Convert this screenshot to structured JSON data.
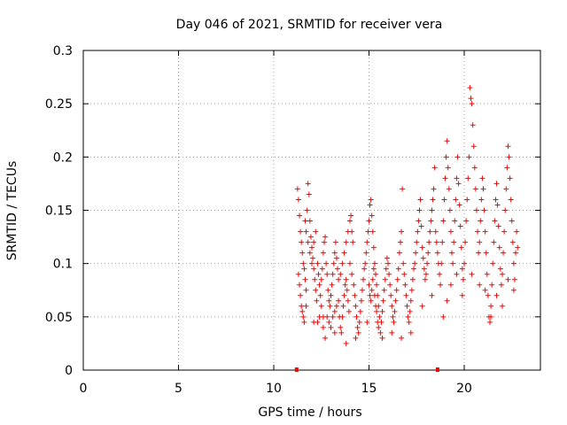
{
  "chart_data": {
    "type": "scatter",
    "title": "Day 046 of 2021, SRMTID for receiver vera",
    "xlabel": "GPS time / hours",
    "ylabel": "SRMTID / TECUs",
    "xlim": [
      0,
      24
    ],
    "ylim": [
      0,
      0.3
    ],
    "x_ticks": [
      0,
      5,
      10,
      15,
      20
    ],
    "x_tick_labels": [
      "0",
      "5",
      "10",
      "15",
      "20"
    ],
    "y_ticks": [
      0,
      0.05,
      0.1,
      0.15,
      0.2,
      0.25,
      0.3
    ],
    "y_tick_labels": [
      "0",
      "0.05",
      "0.1",
      "0.15",
      "0.2",
      "0.25",
      "0.3"
    ],
    "grid": true,
    "marker": "plus",
    "series_color": "#ff0000",
    "zero_markers_x": [
      11.2,
      18.6
    ],
    "points": [
      [
        11.25,
        0.17
      ],
      [
        11.3,
        0.16
      ],
      [
        11.35,
        0.145
      ],
      [
        11.4,
        0.13
      ],
      [
        11.45,
        0.12
      ],
      [
        11.5,
        0.11
      ],
      [
        11.55,
        0.1
      ],
      [
        11.6,
        0.095
      ],
      [
        11.65,
        0.085
      ],
      [
        11.7,
        0.075
      ],
      [
        11.3,
        0.09
      ],
      [
        11.35,
        0.08
      ],
      [
        11.4,
        0.07
      ],
      [
        11.45,
        0.06
      ],
      [
        11.5,
        0.055
      ],
      [
        11.55,
        0.05
      ],
      [
        11.6,
        0.045
      ],
      [
        11.65,
        0.14
      ],
      [
        11.7,
        0.13
      ],
      [
        11.75,
        0.15
      ],
      [
        11.8,
        0.175
      ],
      [
        11.85,
        0.165
      ],
      [
        11.9,
        0.14
      ],
      [
        11.95,
        0.125
      ],
      [
        12.0,
        0.115
      ],
      [
        12.05,
        0.105
      ],
      [
        12.1,
        0.095
      ],
      [
        12.15,
        0.085
      ],
      [
        12.2,
        0.075
      ],
      [
        12.25,
        0.065
      ],
      [
        11.8,
        0.12
      ],
      [
        11.9,
        0.11
      ],
      [
        12.0,
        0.1
      ],
      [
        12.1,
        0.12
      ],
      [
        12.2,
        0.13
      ],
      [
        12.3,
        0.1
      ],
      [
        12.35,
        0.09
      ],
      [
        12.4,
        0.08
      ],
      [
        12.45,
        0.07
      ],
      [
        12.5,
        0.06
      ],
      [
        12.3,
        0.045
      ],
      [
        12.4,
        0.05
      ],
      [
        12.5,
        0.085
      ],
      [
        12.55,
        0.095
      ],
      [
        12.6,
        0.11
      ],
      [
        12.65,
        0.12
      ],
      [
        12.7,
        0.125
      ],
      [
        12.75,
        0.1
      ],
      [
        12.8,
        0.09
      ],
      [
        12.85,
        0.075
      ],
      [
        12.9,
        0.065
      ],
      [
        12.95,
        0.06
      ],
      [
        13.0,
        0.07
      ],
      [
        13.05,
        0.08
      ],
      [
        13.1,
        0.09
      ],
      [
        13.15,
        0.1
      ],
      [
        13.2,
        0.11
      ],
      [
        13.25,
        0.12
      ],
      [
        13.3,
        0.105
      ],
      [
        13.35,
        0.095
      ],
      [
        12.6,
        0.04
      ],
      [
        12.7,
        0.03
      ],
      [
        12.8,
        0.05
      ],
      [
        12.9,
        0.045
      ],
      [
        13.0,
        0.04
      ],
      [
        13.1,
        0.05
      ],
      [
        13.2,
        0.055
      ],
      [
        13.3,
        0.06
      ],
      [
        13.4,
        0.065
      ],
      [
        13.45,
        0.05
      ],
      [
        13.5,
        0.04
      ],
      [
        13.55,
        0.035
      ],
      [
        13.6,
        0.05
      ],
      [
        13.65,
        0.06
      ],
      [
        13.7,
        0.07
      ],
      [
        13.75,
        0.08
      ],
      [
        13.8,
        0.085
      ],
      [
        13.85,
        0.075
      ],
      [
        13.9,
        0.065
      ],
      [
        13.95,
        0.055
      ],
      [
        13.4,
        0.085
      ],
      [
        13.5,
        0.09
      ],
      [
        13.6,
        0.1
      ],
      [
        13.7,
        0.11
      ],
      [
        13.8,
        0.12
      ],
      [
        13.9,
        0.13
      ],
      [
        14.0,
        0.14
      ],
      [
        14.05,
        0.145
      ],
      [
        14.1,
        0.13
      ],
      [
        14.15,
        0.12
      ],
      [
        14.0,
        0.1
      ],
      [
        14.1,
        0.09
      ],
      [
        14.2,
        0.08
      ],
      [
        14.25,
        0.07
      ],
      [
        14.3,
        0.06
      ],
      [
        14.35,
        0.05
      ],
      [
        14.4,
        0.04
      ],
      [
        14.45,
        0.035
      ],
      [
        14.5,
        0.045
      ],
      [
        14.55,
        0.055
      ],
      [
        14.6,
        0.065
      ],
      [
        14.65,
        0.075
      ],
      [
        14.7,
        0.085
      ],
      [
        14.75,
        0.095
      ],
      [
        14.8,
        0.1
      ],
      [
        14.85,
        0.11
      ],
      [
        14.9,
        0.12
      ],
      [
        14.95,
        0.13
      ],
      [
        15.0,
        0.14
      ],
      [
        15.05,
        0.155
      ],
      [
        15.1,
        0.16
      ],
      [
        15.15,
        0.145
      ],
      [
        15.2,
        0.13
      ],
      [
        15.25,
        0.115
      ],
      [
        15.3,
        0.1
      ],
      [
        15.35,
        0.09
      ],
      [
        15.4,
        0.08
      ],
      [
        15.45,
        0.07
      ],
      [
        15.5,
        0.06
      ],
      [
        15.55,
        0.05
      ],
      [
        15.0,
        0.08
      ],
      [
        15.05,
        0.07
      ],
      [
        15.1,
        0.065
      ],
      [
        15.15,
        0.075
      ],
      [
        15.2,
        0.085
      ],
      [
        15.25,
        0.095
      ],
      [
        15.3,
        0.07
      ],
      [
        15.35,
        0.06
      ],
      [
        15.4,
        0.055
      ],
      [
        15.45,
        0.045
      ],
      [
        15.5,
        0.04
      ],
      [
        15.6,
        0.035
      ],
      [
        15.65,
        0.045
      ],
      [
        15.7,
        0.055
      ],
      [
        15.75,
        0.065
      ],
      [
        15.8,
        0.075
      ],
      [
        15.85,
        0.085
      ],
      [
        15.9,
        0.095
      ],
      [
        15.95,
        0.105
      ],
      [
        16.0,
        0.1
      ],
      [
        16.05,
        0.09
      ],
      [
        16.1,
        0.08
      ],
      [
        16.15,
        0.07
      ],
      [
        16.2,
        0.06
      ],
      [
        16.25,
        0.05
      ],
      [
        16.3,
        0.045
      ],
      [
        16.35,
        0.055
      ],
      [
        16.4,
        0.065
      ],
      [
        16.45,
        0.075
      ],
      [
        16.5,
        0.085
      ],
      [
        16.55,
        0.095
      ],
      [
        16.6,
        0.11
      ],
      [
        16.65,
        0.12
      ],
      [
        16.7,
        0.13
      ],
      [
        16.75,
        0.17
      ],
      [
        16.8,
        0.1
      ],
      [
        16.85,
        0.09
      ],
      [
        16.9,
        0.08
      ],
      [
        16.95,
        0.07
      ],
      [
        17.0,
        0.06
      ],
      [
        17.05,
        0.05
      ],
      [
        17.1,
        0.045
      ],
      [
        17.15,
        0.055
      ],
      [
        17.2,
        0.065
      ],
      [
        17.25,
        0.075
      ],
      [
        17.3,
        0.085
      ],
      [
        17.35,
        0.095
      ],
      [
        17.4,
        0.1
      ],
      [
        17.45,
        0.11
      ],
      [
        17.5,
        0.12
      ],
      [
        17.55,
        0.13
      ],
      [
        17.6,
        0.14
      ],
      [
        17.65,
        0.15
      ],
      [
        17.7,
        0.16
      ],
      [
        17.75,
        0.135
      ],
      [
        17.8,
        0.115
      ],
      [
        17.85,
        0.105
      ],
      [
        17.9,
        0.095
      ],
      [
        17.95,
        0.085
      ],
      [
        18.0,
        0.09
      ],
      [
        18.05,
        0.1
      ],
      [
        18.1,
        0.11
      ],
      [
        18.15,
        0.12
      ],
      [
        18.2,
        0.13
      ],
      [
        18.25,
        0.14
      ],
      [
        18.3,
        0.15
      ],
      [
        18.35,
        0.16
      ],
      [
        18.4,
        0.17
      ],
      [
        18.45,
        0.19
      ],
      [
        18.5,
        0.13
      ],
      [
        18.55,
        0.12
      ],
      [
        18.6,
        0.11
      ],
      [
        18.65,
        0.1
      ],
      [
        18.7,
        0.09
      ],
      [
        18.75,
        0.08
      ],
      [
        18.8,
        0.1
      ],
      [
        18.85,
        0.12
      ],
      [
        18.9,
        0.14
      ],
      [
        18.95,
        0.16
      ],
      [
        19.0,
        0.18
      ],
      [
        19.05,
        0.2
      ],
      [
        19.1,
        0.215
      ],
      [
        19.15,
        0.19
      ],
      [
        19.2,
        0.17
      ],
      [
        19.25,
        0.15
      ],
      [
        19.3,
        0.13
      ],
      [
        19.35,
        0.11
      ],
      [
        19.4,
        0.1
      ],
      [
        19.45,
        0.12
      ],
      [
        19.5,
        0.14
      ],
      [
        19.55,
        0.16
      ],
      [
        19.6,
        0.18
      ],
      [
        19.65,
        0.2
      ],
      [
        19.7,
        0.175
      ],
      [
        19.75,
        0.155
      ],
      [
        19.8,
        0.135
      ],
      [
        19.85,
        0.115
      ],
      [
        19.9,
        0.095
      ],
      [
        19.95,
        0.085
      ],
      [
        20.0,
        0.1
      ],
      [
        20.05,
        0.12
      ],
      [
        20.1,
        0.14
      ],
      [
        20.15,
        0.16
      ],
      [
        20.2,
        0.18
      ],
      [
        20.25,
        0.2
      ],
      [
        20.3,
        0.265
      ],
      [
        20.35,
        0.255
      ],
      [
        20.4,
        0.25
      ],
      [
        20.45,
        0.23
      ],
      [
        20.5,
        0.21
      ],
      [
        20.55,
        0.19
      ],
      [
        20.6,
        0.17
      ],
      [
        20.65,
        0.15
      ],
      [
        20.7,
        0.13
      ],
      [
        20.75,
        0.11
      ],
      [
        20.8,
        0.12
      ],
      [
        20.85,
        0.14
      ],
      [
        20.9,
        0.16
      ],
      [
        20.95,
        0.18
      ],
      [
        21.0,
        0.17
      ],
      [
        21.05,
        0.15
      ],
      [
        21.1,
        0.13
      ],
      [
        21.15,
        0.11
      ],
      [
        21.2,
        0.09
      ],
      [
        21.25,
        0.07
      ],
      [
        21.3,
        0.05
      ],
      [
        21.35,
        0.045
      ],
      [
        21.4,
        0.06
      ],
      [
        21.45,
        0.08
      ],
      [
        21.5,
        0.1
      ],
      [
        21.55,
        0.12
      ],
      [
        21.6,
        0.14
      ],
      [
        21.65,
        0.16
      ],
      [
        21.7,
        0.175
      ],
      [
        21.75,
        0.155
      ],
      [
        21.8,
        0.135
      ],
      [
        21.85,
        0.115
      ],
      [
        21.9,
        0.095
      ],
      [
        21.95,
        0.08
      ],
      [
        22.0,
        0.09
      ],
      [
        22.05,
        0.11
      ],
      [
        22.1,
        0.13
      ],
      [
        22.15,
        0.15
      ],
      [
        22.2,
        0.17
      ],
      [
        22.25,
        0.19
      ],
      [
        22.3,
        0.21
      ],
      [
        22.35,
        0.2
      ],
      [
        22.4,
        0.18
      ],
      [
        22.45,
        0.16
      ],
      [
        22.5,
        0.14
      ],
      [
        22.55,
        0.12
      ],
      [
        22.6,
        0.1
      ],
      [
        22.65,
        0.085
      ],
      [
        22.7,
        0.11
      ],
      [
        22.75,
        0.13
      ],
      [
        22.8,
        0.115
      ],
      [
        18.9,
        0.05
      ],
      [
        19.1,
        0.065
      ],
      [
        19.3,
        0.08
      ],
      [
        19.6,
        0.09
      ],
      [
        19.9,
        0.07
      ],
      [
        20.4,
        0.09
      ],
      [
        20.8,
        0.08
      ],
      [
        21.1,
        0.075
      ],
      [
        21.4,
        0.05
      ],
      [
        21.7,
        0.07
      ],
      [
        22.0,
        0.06
      ],
      [
        22.3,
        0.085
      ],
      [
        22.6,
        0.075
      ],
      [
        18.3,
        0.07
      ],
      [
        17.8,
        0.06
      ],
      [
        17.2,
        0.035
      ],
      [
        16.7,
        0.03
      ],
      [
        16.2,
        0.035
      ],
      [
        15.7,
        0.03
      ],
      [
        14.9,
        0.045
      ],
      [
        14.3,
        0.03
      ],
      [
        13.8,
        0.025
      ],
      [
        13.2,
        0.035
      ],
      [
        12.6,
        0.05
      ],
      [
        12.1,
        0.045
      ],
      [
        11.7,
        0.06
      ]
    ]
  }
}
